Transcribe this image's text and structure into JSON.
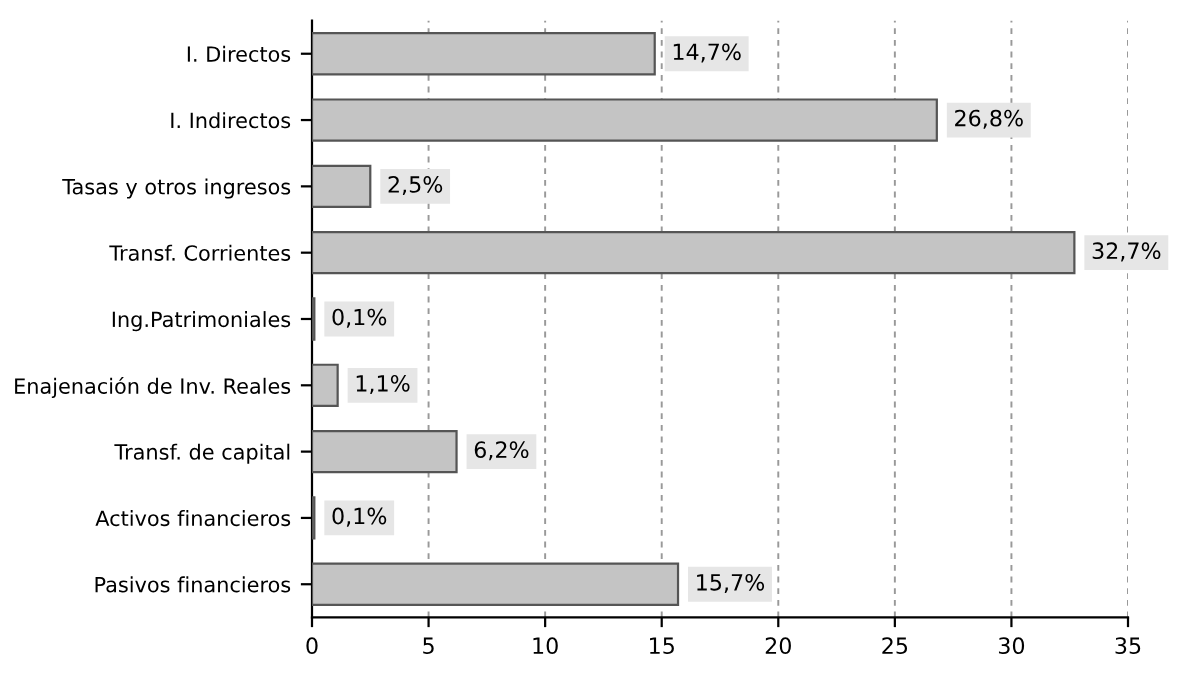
{
  "chart_data": {
    "type": "bar",
    "orientation": "horizontal",
    "categories": [
      "I. Directos",
      "I. Indirectos",
      "Tasas y otros ingresos",
      "Transf. Corrientes",
      "Ing.Patrimoniales",
      "Enajenación de Inv. Reales",
      "Transf. de capital",
      "Activos financieros",
      "Pasivos financieros"
    ],
    "values": [
      14.7,
      26.8,
      2.5,
      32.7,
      0.1,
      1.1,
      6.2,
      0.1,
      15.7
    ],
    "value_labels": [
      "14,7%",
      "26,8%",
      "2,5%",
      "32,7%",
      "0,1%",
      "1,1%",
      "6,2%",
      "0,1%",
      "15,7%"
    ],
    "color": "#c4c4c4",
    "xlim": [
      0,
      35
    ],
    "xticks": [
      0,
      5,
      10,
      15,
      20,
      25,
      30,
      35
    ],
    "grid": "x"
  }
}
